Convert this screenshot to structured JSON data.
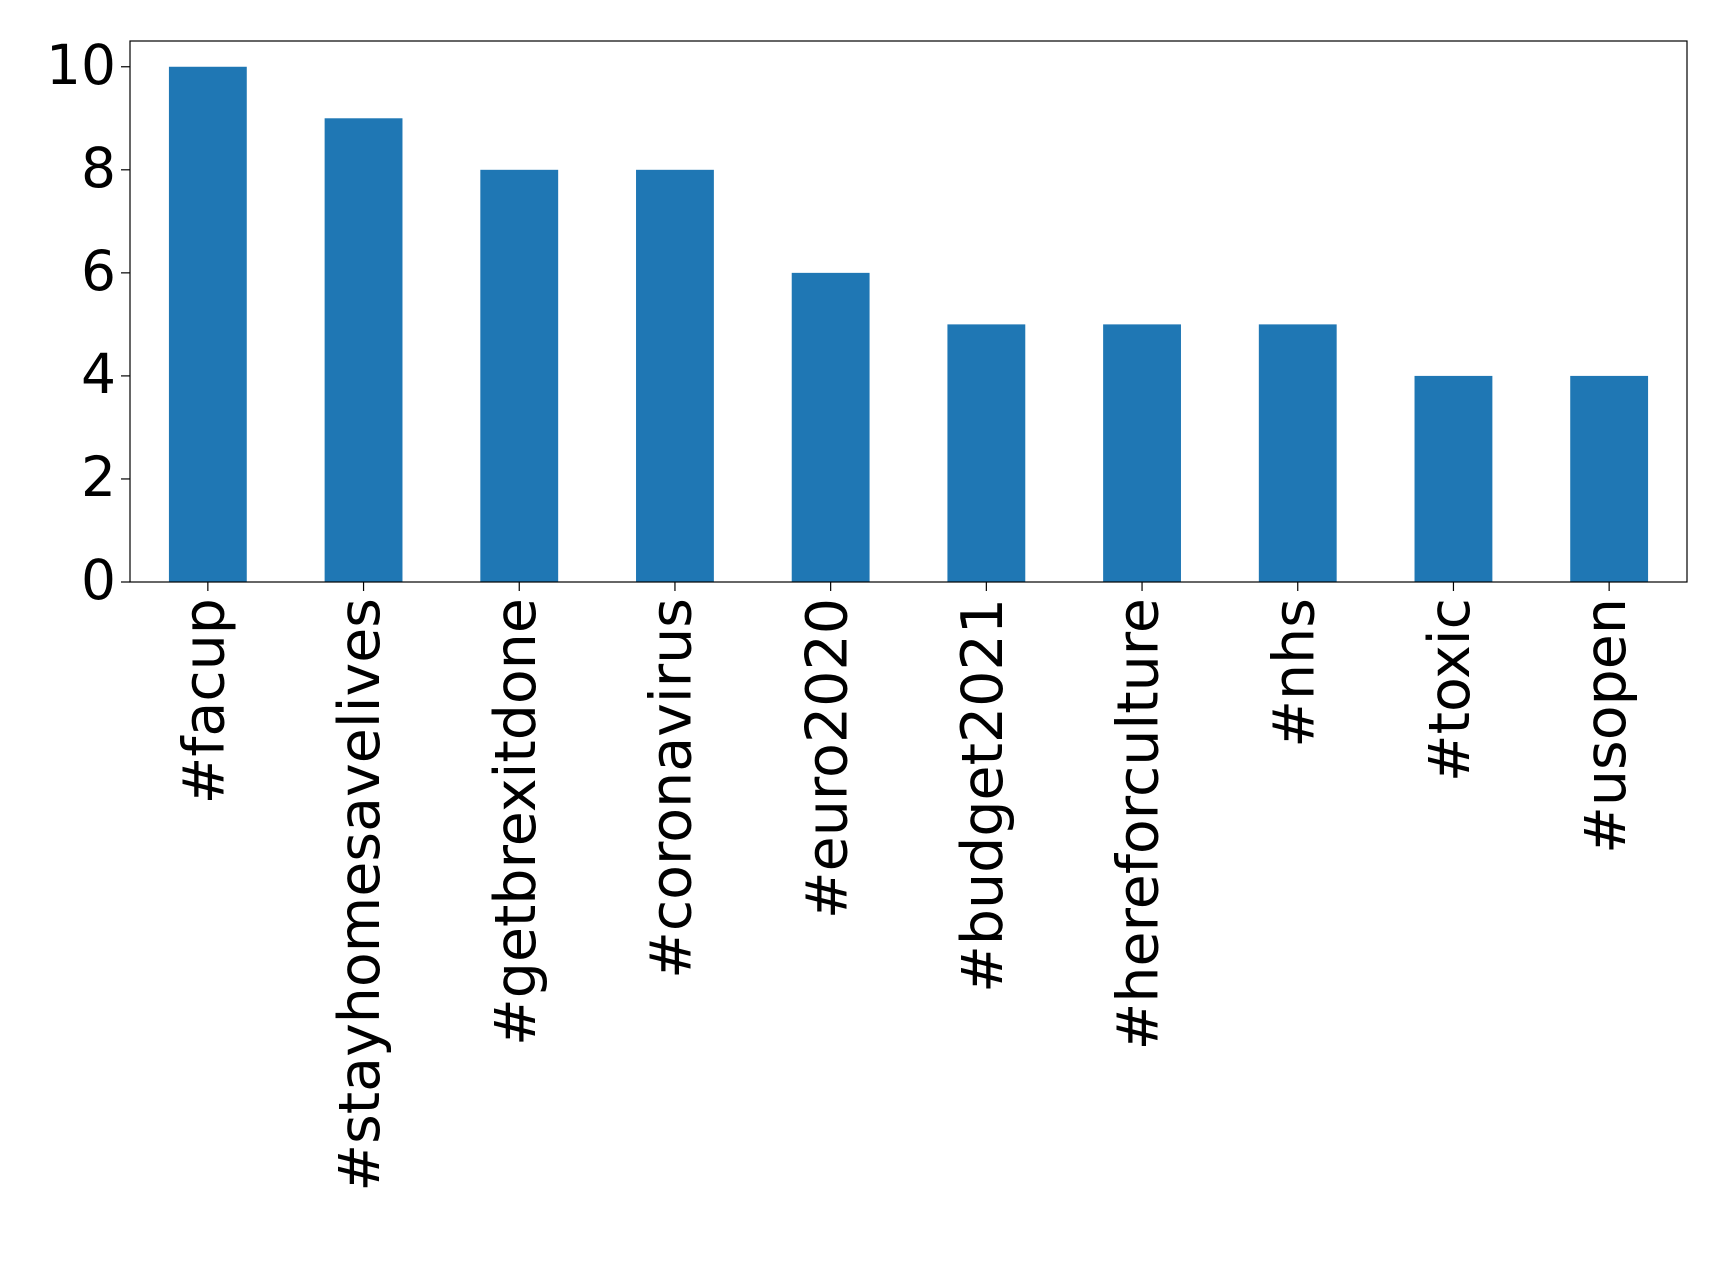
{
  "chart_data": {
    "type": "bar",
    "categories": [
      "#facup",
      "#stayhomesavelives",
      "#getbrexitdone",
      "#coronavirus",
      "#euro2020",
      "#budget2021",
      "#hereforculture",
      "#nhs",
      "#toxic",
      "#usopen"
    ],
    "values": [
      10,
      9,
      8,
      8,
      6,
      5,
      5,
      5,
      4,
      4
    ],
    "color": "#1f77b4",
    "ylim": [
      0,
      10.5
    ],
    "yticks": [
      0,
      2,
      4,
      6,
      8,
      10
    ],
    "grid": false
  }
}
